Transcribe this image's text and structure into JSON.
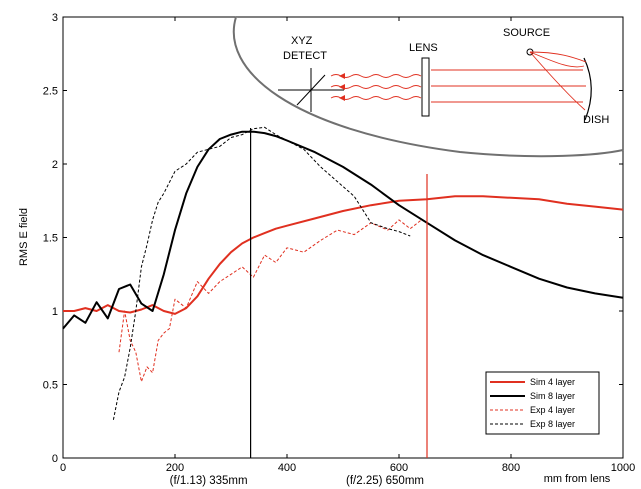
{
  "chart_data": {
    "type": "line",
    "xlabel": "mm from lens",
    "ylabel": "RMS E field",
    "xlim": [
      0,
      1000
    ],
    "ylim": [
      0,
      3
    ],
    "x_ticks": [
      0,
      200,
      400,
      600,
      800,
      1000
    ],
    "y_ticks": [
      0,
      0.5,
      1,
      1.5,
      2,
      2.5,
      3
    ],
    "grid": false,
    "legend_position": "bottom-right",
    "series": [
      {
        "name": "Sim 4 layer",
        "color": "#e03020",
        "style": "solid",
        "x": [
          0,
          20,
          40,
          60,
          80,
          100,
          120,
          140,
          160,
          180,
          200,
          220,
          240,
          260,
          280,
          300,
          320,
          340,
          360,
          380,
          400,
          450,
          500,
          550,
          600,
          650,
          700,
          750,
          800,
          850,
          900,
          950,
          1000
        ],
        "y": [
          1.0,
          1.0,
          1.02,
          1.0,
          1.04,
          1.0,
          0.99,
          1.01,
          1.04,
          1.0,
          0.98,
          1.02,
          1.1,
          1.22,
          1.32,
          1.4,
          1.46,
          1.5,
          1.53,
          1.56,
          1.58,
          1.63,
          1.68,
          1.72,
          1.75,
          1.76,
          1.78,
          1.78,
          1.77,
          1.76,
          1.73,
          1.71,
          1.69
        ]
      },
      {
        "name": "Sim 8 layer",
        "color": "#000000",
        "style": "solid",
        "x": [
          0,
          20,
          40,
          60,
          80,
          100,
          120,
          140,
          160,
          180,
          200,
          220,
          240,
          260,
          280,
          300,
          320,
          340,
          360,
          380,
          400,
          450,
          500,
          550,
          600,
          650,
          700,
          750,
          800,
          850,
          900,
          950,
          1000
        ],
        "y": [
          0.88,
          0.97,
          0.92,
          1.06,
          0.95,
          1.15,
          1.18,
          1.05,
          1.0,
          1.25,
          1.55,
          1.8,
          1.98,
          2.1,
          2.17,
          2.2,
          2.22,
          2.22,
          2.21,
          2.19,
          2.16,
          2.08,
          1.98,
          1.86,
          1.72,
          1.6,
          1.48,
          1.38,
          1.3,
          1.22,
          1.16,
          1.12,
          1.09
        ]
      },
      {
        "name": "Exp 4 layer",
        "color": "#e03020",
        "style": "dashed",
        "x": [
          100,
          110,
          120,
          130,
          140,
          150,
          160,
          170,
          180,
          190,
          200,
          220,
          240,
          260,
          280,
          300,
          320,
          340,
          360,
          380,
          400,
          430,
          460,
          490,
          520,
          550,
          580,
          600,
          620,
          640
        ],
        "y": [
          0.72,
          1.0,
          0.8,
          0.72,
          0.52,
          0.62,
          0.58,
          0.8,
          0.85,
          0.88,
          1.08,
          1.02,
          1.2,
          1.12,
          1.2,
          1.25,
          1.3,
          1.23,
          1.38,
          1.33,
          1.43,
          1.4,
          1.48,
          1.55,
          1.52,
          1.6,
          1.55,
          1.62,
          1.56,
          1.62
        ]
      },
      {
        "name": "Exp 8 layer",
        "color": "#000000",
        "style": "dashed",
        "x": [
          90,
          100,
          110,
          120,
          130,
          140,
          150,
          160,
          170,
          180,
          200,
          220,
          240,
          260,
          280,
          300,
          320,
          340,
          360,
          380,
          400,
          430,
          460,
          490,
          520,
          550,
          580,
          600,
          620
        ],
        "y": [
          0.26,
          0.45,
          0.55,
          0.75,
          1.0,
          1.3,
          1.45,
          1.62,
          1.74,
          1.8,
          1.95,
          2.0,
          2.08,
          2.1,
          2.12,
          2.18,
          2.2,
          2.24,
          2.25,
          2.2,
          2.16,
          2.1,
          1.98,
          1.88,
          1.78,
          1.6,
          1.56,
          1.54,
          1.51
        ]
      }
    ],
    "vertical_markers": [
      {
        "x": 335,
        "color": "#000000",
        "label": "(f/1.13) 335mm"
      },
      {
        "x": 650,
        "color": "#e03020",
        "label": "(f/2.25) 650mm"
      }
    ],
    "inset_labels": {
      "detect_line1": "XYZ",
      "detect_line2": "DETECT",
      "lens": "LENS",
      "source": "SOURCE",
      "dish": "DISH"
    }
  }
}
